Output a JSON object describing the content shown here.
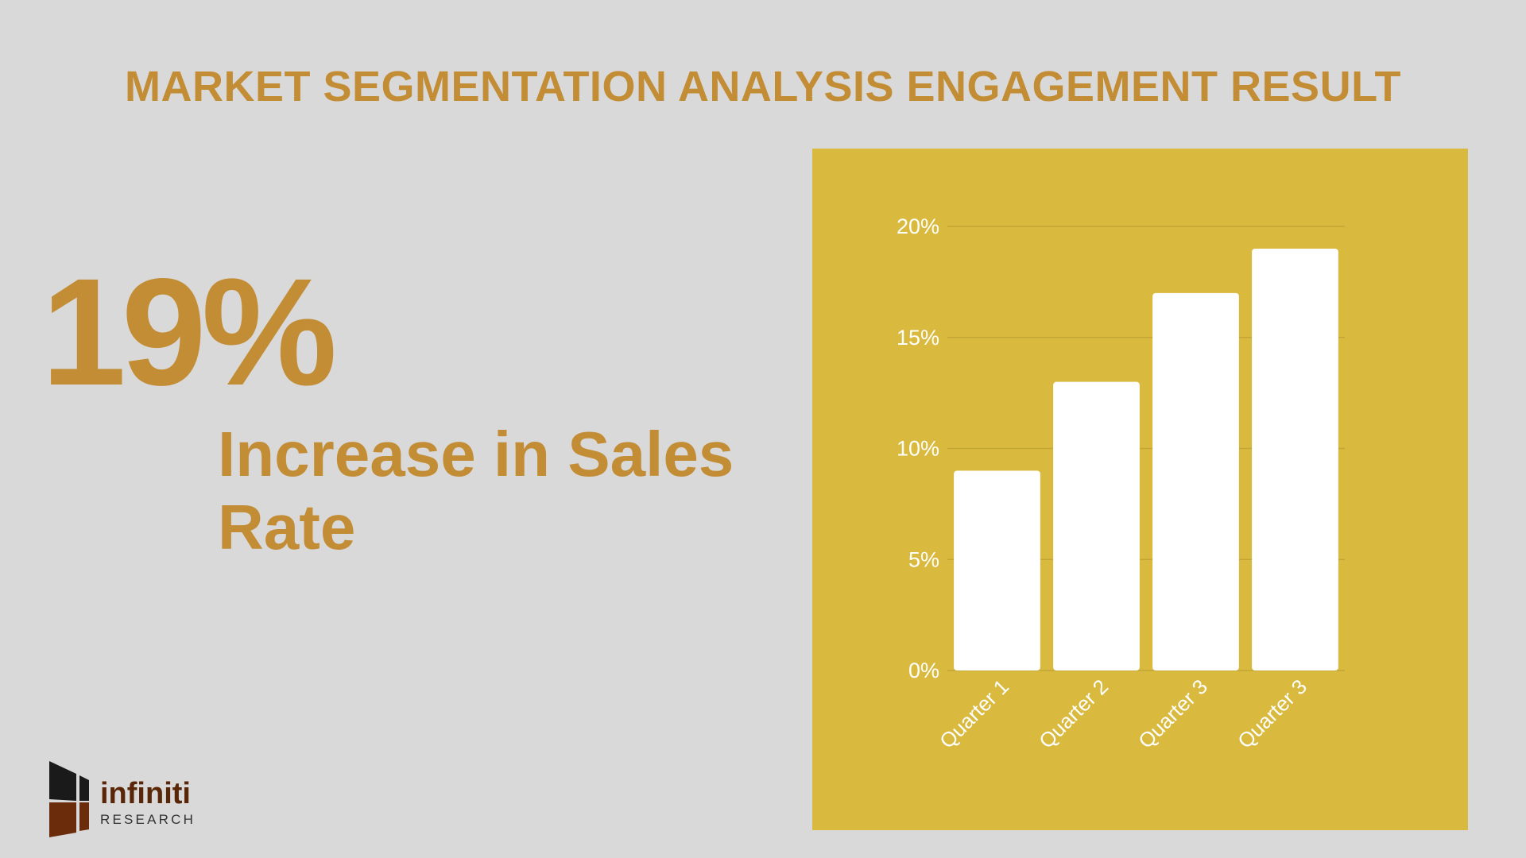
{
  "header": {
    "title": "MARKET SEGMENTATION ANALYSIS ENGAGEMENT RESULT"
  },
  "highlight": {
    "value": "19%",
    "label": "Increase in Sales Rate"
  },
  "logo": {
    "name": "infiniti",
    "sub": "RESEARCH"
  },
  "colors": {
    "accent": "#c38d35",
    "panel": "#d9ba3f",
    "bar": "#ffffff",
    "background": "#d9d9d9",
    "logo_dark": "#1a1a1a",
    "logo_brown": "#6b2c0c"
  },
  "chart_data": {
    "type": "bar",
    "categories": [
      "Quarter 1",
      "Quarter 2",
      "Quarter 3",
      "Quarter 3"
    ],
    "values": [
      9,
      13,
      17,
      19
    ],
    "title": "",
    "xlabel": "",
    "ylabel": "",
    "ylim": [
      0,
      20
    ],
    "yticks": [
      0,
      5,
      10,
      15,
      20
    ],
    "ytick_labels": [
      "0%",
      "5%",
      "10%",
      "15%",
      "20%"
    ],
    "grid": true,
    "legend": "none"
  }
}
